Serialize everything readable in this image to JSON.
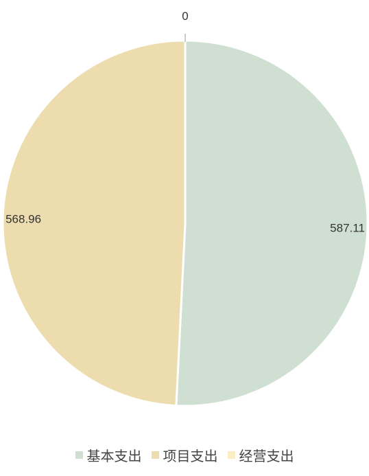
{
  "chart_data": {
    "type": "pie",
    "categories": [
      "基本支出",
      "项目支出",
      "经营支出"
    ],
    "values": [
      587.11,
      568.96,
      0
    ],
    "data_labels": [
      "587.11",
      "568.96",
      "0"
    ],
    "colors": [
      "#cfe0d3",
      "#ecdcae",
      "#fbeec2"
    ],
    "legend_position": "bottom"
  }
}
